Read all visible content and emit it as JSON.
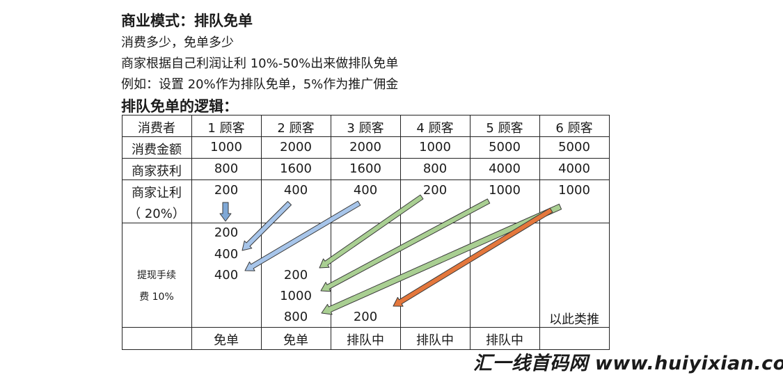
{
  "heading": "商业模式：排队免单",
  "lines": [
    "消费多少，免单多少",
    "商家根据自己利润让利 10%-50%出来做排队免单",
    "例如：设置 20%作为排队免单，5%作为推广佣金"
  ],
  "subheading": "排队免单的逻辑：",
  "table": {
    "header": [
      "消费者",
      "1 顾客",
      "2 顾客",
      "3 顾客",
      "4 顾客",
      "5 顾客",
      "6 顾客"
    ],
    "rows": [
      [
        "消费金额",
        "1000",
        "2000",
        "2000",
        "1000",
        "5000",
        "5000"
      ],
      [
        "商家获利",
        "800",
        "1600",
        "1600",
        "800",
        "4000",
        "4000"
      ],
      [
        "商家让利",
        "200",
        "400",
        "400",
        "200",
        "1000",
        "1000"
      ]
    ],
    "rate_note": "（ 20%）",
    "fee_label": [
      "提现手续",
      "费 10%"
    ],
    "queue_col1": [
      "200",
      "400",
      "400"
    ],
    "queue_col2": [
      "200",
      "1000",
      "800"
    ],
    "queue_col3": [
      "200"
    ],
    "etc": "以此类推",
    "status": [
      "免单",
      "免单",
      "排队中",
      "排队中",
      "排队中",
      ""
    ]
  },
  "arrow_colors": {
    "down": "#7fa8d6",
    "blue": "#a7c5ea",
    "green": "#a9cf92",
    "orange": "#e4773c",
    "outline": "#3a3a3a"
  },
  "watermark": "汇一线首码网 www.huiyixian.com"
}
